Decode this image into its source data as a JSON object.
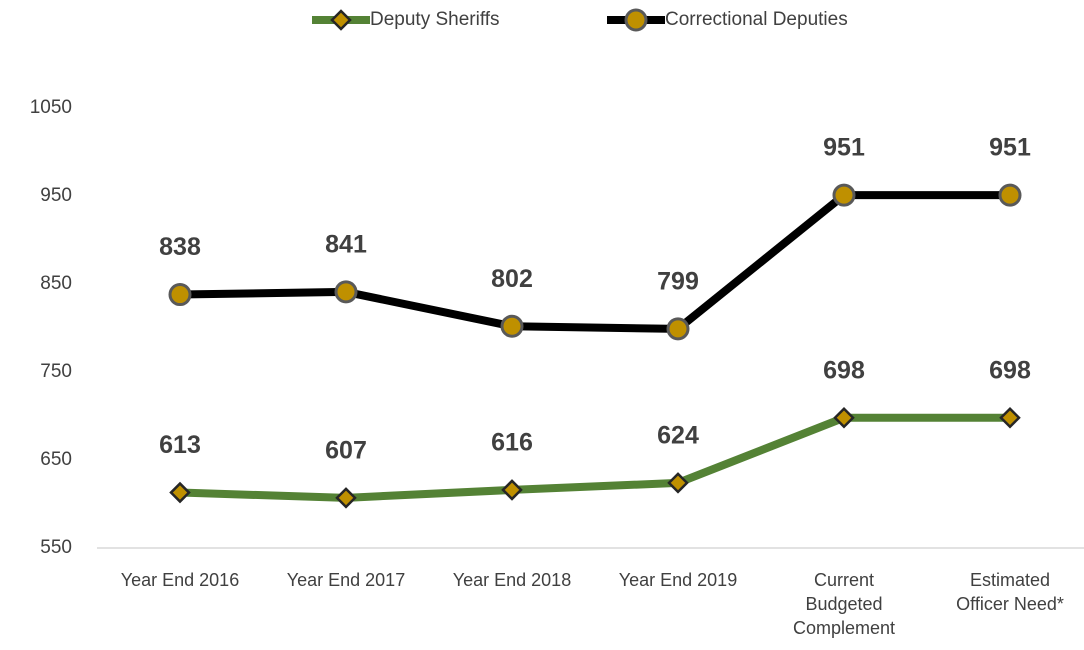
{
  "chart_data": {
    "type": "line",
    "categories": [
      "Year End 2016",
      "Year End 2017",
      "Year End 2018",
      "Year End 2019",
      "Current Budgeted Complement",
      "Estimated Officer Need*"
    ],
    "series": [
      {
        "name": "Deputy Sheriffs",
        "color": "#548235",
        "marker": "diamond",
        "values": [
          613,
          607,
          616,
          624,
          698,
          698
        ]
      },
      {
        "name": "Correctional Deputies",
        "color": "#000000",
        "marker": "circle",
        "values": [
          838,
          841,
          802,
          799,
          951,
          951
        ]
      }
    ],
    "ylim": [
      550,
      1050
    ],
    "yticks": [
      550,
      650,
      750,
      850,
      950,
      1050
    ],
    "grid": false,
    "legend": "top"
  }
}
